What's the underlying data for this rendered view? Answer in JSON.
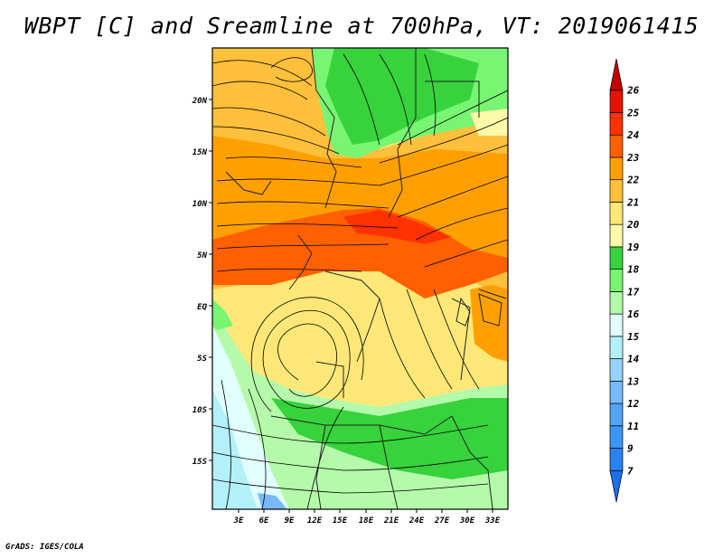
{
  "title": "WBPT [C] and Sreamline at 700hPa, VT: 2019061415",
  "credit": "GrADS: IGES/COLA",
  "map": {
    "lat_labels": [
      "20N",
      "15N",
      "10N",
      "5N",
      "EQ",
      "5S",
      "10S",
      "15S"
    ],
    "lon_labels": [
      "3E",
      "6E",
      "9E",
      "12E",
      "15E",
      "18E",
      "21E",
      "24E",
      "27E",
      "30E",
      "33E"
    ]
  },
  "colorbar": {
    "levels": [
      "7",
      "9",
      "11",
      "12",
      "13",
      "14",
      "15",
      "16",
      "17",
      "18",
      "19",
      "20",
      "21",
      "22",
      "23",
      "24",
      "25",
      "26"
    ],
    "colors": [
      "#1e6eeb",
      "#2882f0",
      "#3c96f5",
      "#50a5f5",
      "#78b9fa",
      "#96d2fa",
      "#b4f0fa",
      "#e1ffff",
      "#b4faaa",
      "#78f573",
      "#37d23c",
      "#fffaaa",
      "#ffe878",
      "#ffc03c",
      "#ffa000",
      "#ff6000",
      "#ff3200",
      "#e11400",
      "#c00000"
    ]
  }
}
